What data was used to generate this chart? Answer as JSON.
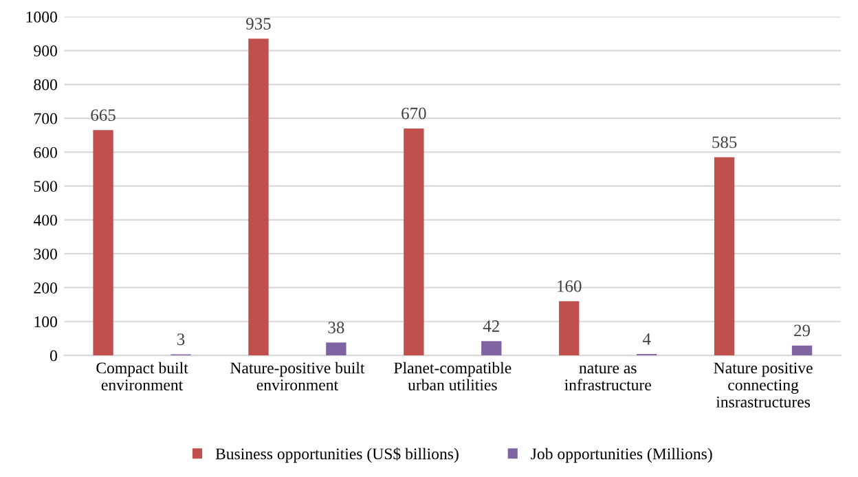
{
  "chart_data": {
    "type": "bar",
    "categories": [
      "Compact built\nenvironment",
      "Nature-positive built\nenvironment",
      "Planet-compatible\nurban utilities",
      "nature as\ninfrastructure",
      "Nature positive\nconnecting\ninsrastructures"
    ],
    "series": [
      {
        "name": "Business opportunities (US$ billions)",
        "color": "#c0504d",
        "values": [
          665,
          935,
          670,
          160,
          585
        ]
      },
      {
        "name": "Job opportunities (Millions)",
        "color": "#8064a2",
        "values": [
          3,
          38,
          42,
          4,
          29
        ]
      }
    ],
    "ylim": [
      0,
      1000
    ],
    "yticks": [
      0,
      100,
      200,
      300,
      400,
      500,
      600,
      700,
      800,
      900,
      1000
    ],
    "grid": "y",
    "legend": "bottom",
    "data_labels": true
  }
}
